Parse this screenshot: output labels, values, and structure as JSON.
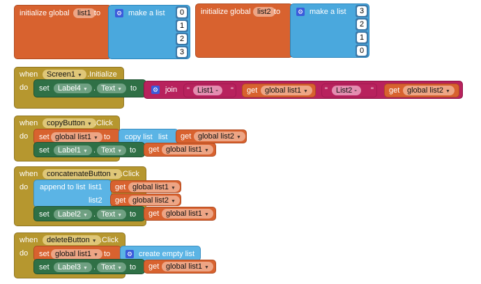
{
  "global_init": [
    {
      "prefix": "initialize global",
      "name": "list1",
      "to": "to",
      "list_label": "make a list",
      "items": [
        "0",
        "1",
        "2",
        "3"
      ]
    },
    {
      "prefix": "initialize global",
      "name": "list2",
      "to": "to",
      "list_label": "make a list",
      "items": [
        "3",
        "2",
        "1",
        "0"
      ]
    }
  ],
  "screen_init": {
    "when": "when",
    "component": "Screen1",
    "event": ".Initialize",
    "do": "do",
    "set": "set",
    "label": "Label4",
    "dot": ".",
    "prop": "Text",
    "to": "to",
    "join": "join",
    "quote": "\"",
    "str1": "List1 -",
    "get1_kw": "get",
    "get1_var": "global list1",
    "str2": "List2 -",
    "get2_kw": "get",
    "get2_var": "global list2"
  },
  "copy_click": {
    "when": "when",
    "component": "copyButton",
    "event": ".Click",
    "do": "do",
    "set1": "set",
    "var1": "global list1",
    "to1": "to",
    "copy_label": "copy list",
    "list_kw": "list",
    "get_kw": "get",
    "get_var": "global list2",
    "set2": "set",
    "label": "Label1",
    "dot": ".",
    "prop": "Text",
    "to2": "to",
    "get2_kw": "get",
    "get2_var": "global list1"
  },
  "concat_click": {
    "when": "when",
    "component": "concatenateButton",
    "event": ".Click",
    "do": "do",
    "append": "append to list",
    "list1_kw": "list1",
    "list2_kw": "list2",
    "get1_kw": "get",
    "get1_var": "global list1",
    "get2_kw": "get",
    "get2_var": "global list2",
    "set": "set",
    "label": "Label2",
    "dot": ".",
    "prop": "Text",
    "to": "to",
    "get3_kw": "get",
    "get3_var": "global list1"
  },
  "delete_click": {
    "when": "when",
    "component": "deleteButton",
    "event": ".Click",
    "do": "do",
    "set1": "set",
    "var1": "global list1",
    "to1": "to",
    "create": "create empty list",
    "set2": "set",
    "label": "Label3",
    "dot": ".",
    "prop": "Text",
    "to2": "to",
    "get_kw": "get",
    "get_var": "global list1"
  },
  "colors": {
    "global": "#d8622f",
    "list": "#4aa8dd",
    "event": "#b6972f",
    "setter": "#2f7046",
    "text": "#b8225d"
  }
}
